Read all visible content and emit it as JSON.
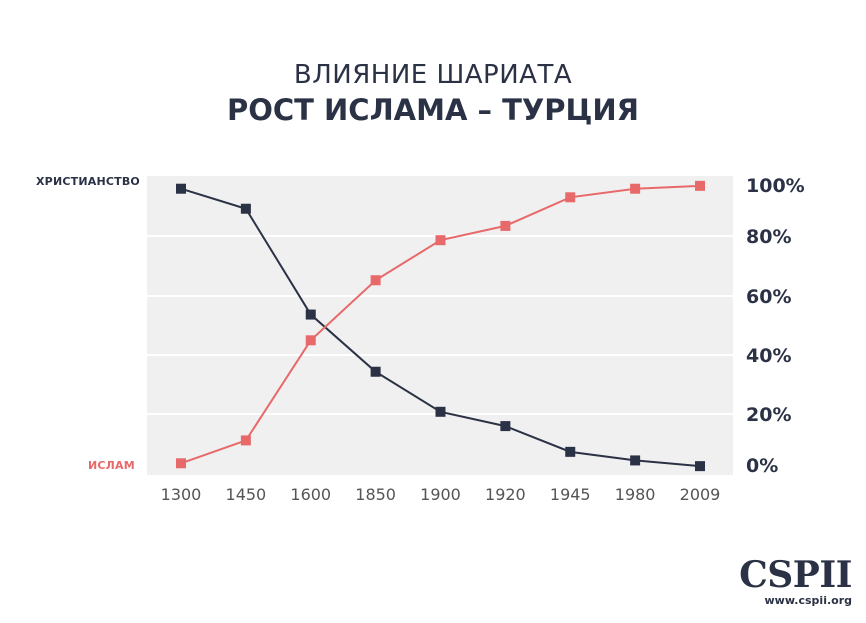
{
  "title_line1": "ВЛИЯНИЕ ШАРИАТА",
  "title_line2": "РОСТ ИСЛАМА – ТУРЦИЯ",
  "logo": {
    "mark": "CSPII",
    "url": "www.cspii.org"
  },
  "colors": {
    "christianity": "#2b3245",
    "islam": "#e8696a",
    "plot_background": "#f0f0f0",
    "grid": "#ffffff",
    "tick_text": "#2b3245",
    "x_tick_text": "#555555"
  },
  "chart_data": {
    "type": "line",
    "categories": [
      "1300",
      "1450",
      "1600",
      "1850",
      "1900",
      "1920",
      "1945",
      "1980",
      "2009"
    ],
    "series": [
      {
        "name": "ХРИСТИАНСТВО",
        "values": [
          98,
          91,
          54,
          34,
          20,
          15,
          6,
          3,
          1
        ]
      },
      {
        "name": "ИСЛАМ",
        "values": [
          2,
          10,
          45,
          66,
          80,
          85,
          95,
          98,
          99
        ]
      }
    ],
    "ylim": [
      0,
      100
    ],
    "yticks": [
      0,
      20,
      40,
      60,
      80,
      100
    ],
    "ytick_labels": [
      "0%",
      "20%",
      "40%",
      "60%",
      "80%",
      "100%"
    ],
    "y_axis_side": "right",
    "grid": true,
    "marker": "square"
  }
}
